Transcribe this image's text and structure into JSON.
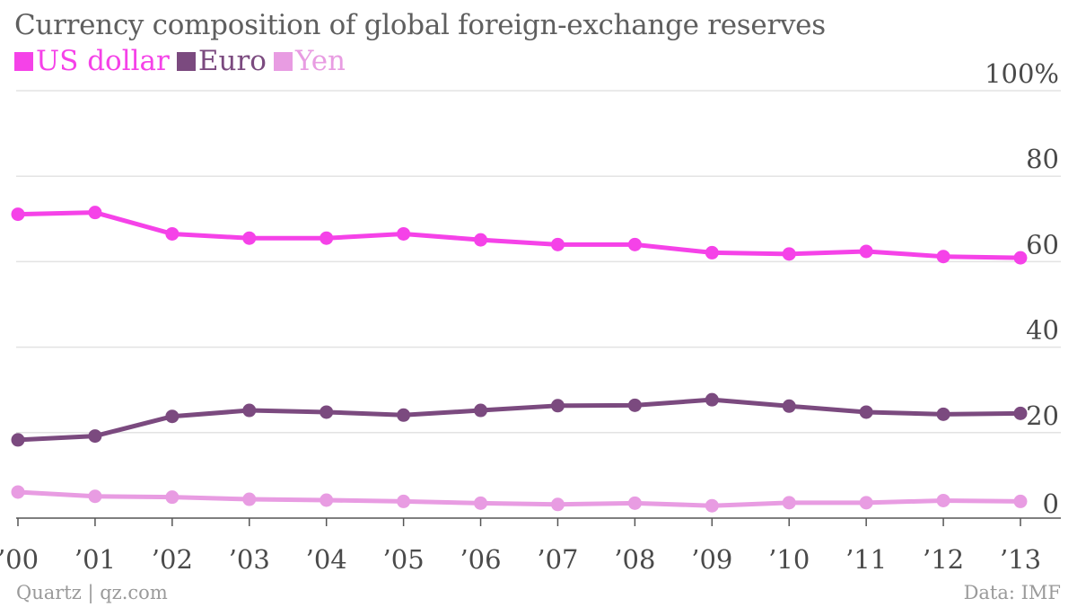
{
  "title": "Currency composition of global foreign-exchange reserves",
  "footer": {
    "source_left": "Quartz | qz.com",
    "source_right": "Data: IMF"
  },
  "chart_data": {
    "type": "line",
    "title": "Currency composition of global foreign-exchange reserves",
    "x": [
      "’00",
      "’01",
      "’02",
      "’03",
      "’04",
      "’05",
      "’06",
      "’07",
      "’08",
      "’09",
      "’10",
      "’11",
      "’12",
      "’13"
    ],
    "series": [
      {
        "name": "US dollar",
        "color": "#f542e8",
        "values": [
          71.1,
          71.5,
          66.5,
          65.5,
          65.5,
          66.5,
          65.1,
          64.0,
          64.0,
          62.1,
          61.8,
          62.4,
          61.2,
          60.9
        ]
      },
      {
        "name": "Euro",
        "color": "#7b4a7f",
        "values": [
          18.3,
          19.2,
          23.8,
          25.2,
          24.8,
          24.1,
          25.2,
          26.3,
          26.4,
          27.7,
          26.2,
          24.8,
          24.3,
          24.5
        ]
      },
      {
        "name": "Yen",
        "color": "#e89ce2",
        "values": [
          6.1,
          5.1,
          4.9,
          4.4,
          4.2,
          3.9,
          3.5,
          3.2,
          3.5,
          2.9,
          3.6,
          3.6,
          4.1,
          3.9
        ]
      }
    ],
    "y_ticks": [
      {
        "value": 0,
        "label": "0"
      },
      {
        "value": 20,
        "label": "20"
      },
      {
        "value": 40,
        "label": "40"
      },
      {
        "value": 60,
        "label": "60"
      },
      {
        "value": 80,
        "label": "80"
      },
      {
        "value": 100,
        "label": "100%"
      }
    ],
    "ylim": [
      0,
      100
    ],
    "grid": true,
    "legend_position": "top-left",
    "y_axis_position": "right"
  }
}
